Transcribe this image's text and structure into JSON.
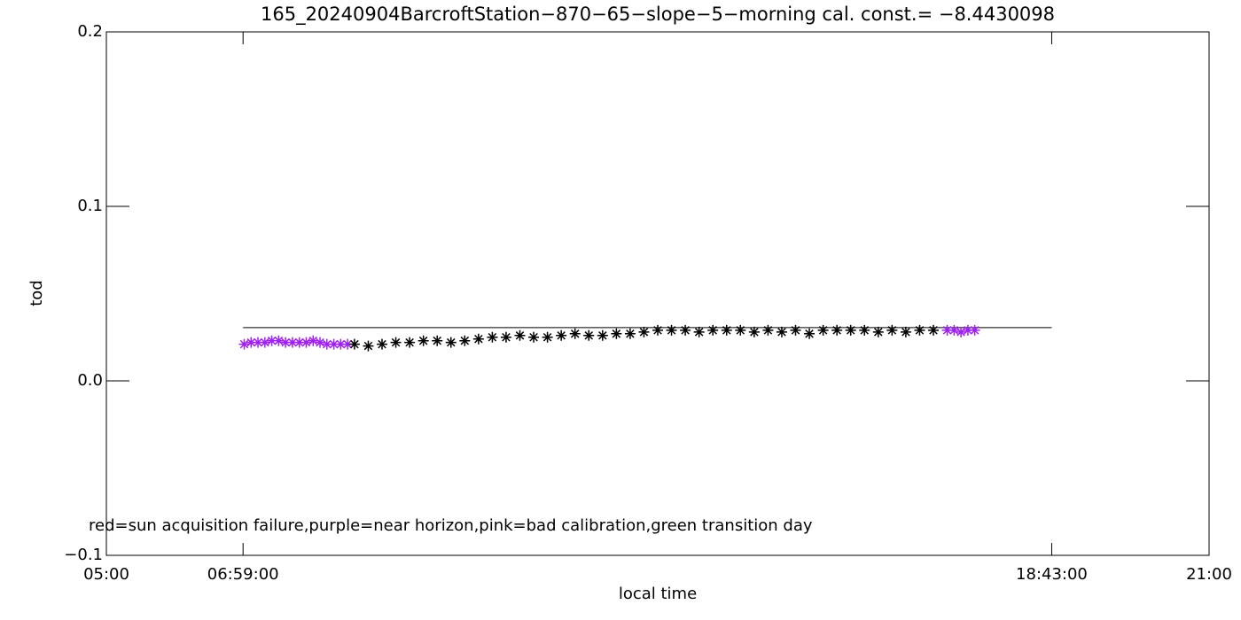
{
  "chart_data": {
    "type": "scatter",
    "title": "165_20240904BarcroftStation−870−65−slope−5−morning cal. const.= −8.4430098",
    "x_label": "local time",
    "y_label": "tod",
    "annotation": "red=sun acquisition failure,purple=near horizon,pink=bad calibration,green transition day",
    "xlim": [
      5,
      21
    ],
    "ylim": [
      -0.1,
      0.2
    ],
    "xticks": [
      {
        "value": 5,
        "label": "05:00"
      },
      {
        "value": 6.9833,
        "label": "06:59:00"
      },
      {
        "value": 18.7167,
        "label": "18:43:00"
      },
      {
        "value": 21,
        "label": "21:00"
      }
    ],
    "yticks": [
      {
        "value": -0.1,
        "label": "−0.1"
      },
      {
        "value": 0,
        "label": "0.0"
      },
      0.1,
      0.2
    ],
    "reference_line": {
      "y": 0.0305,
      "x": [
        6.9833,
        18.7167
      ],
      "color": "#000000"
    },
    "series": [
      {
        "name": "purple",
        "color": "#a020f0",
        "x": [
          7.0,
          7.1,
          7.2,
          7.3,
          7.4,
          7.5,
          7.6,
          7.7,
          7.8,
          7.9,
          8.0,
          8.1,
          8.2,
          8.3,
          8.4,
          8.5,
          17.2,
          17.3,
          17.4,
          17.5,
          17.6
        ],
        "values": [
          0.021,
          0.022,
          0.022,
          0.022,
          0.023,
          0.023,
          0.022,
          0.022,
          0.022,
          0.022,
          0.023,
          0.022,
          0.021,
          0.021,
          0.021,
          0.021,
          0.029,
          0.029,
          0.028,
          0.029,
          0.029
        ]
      },
      {
        "name": "black",
        "color": "#000000",
        "x": [
          8.6,
          8.8,
          9.0,
          9.2,
          9.4,
          9.6,
          9.8,
          10.0,
          10.2,
          10.4,
          10.6,
          10.8,
          11.0,
          11.2,
          11.4,
          11.6,
          11.8,
          12.0,
          12.2,
          12.4,
          12.6,
          12.8,
          13.0,
          13.2,
          13.4,
          13.6,
          13.8,
          14.0,
          14.2,
          14.4,
          14.6,
          14.8,
          15.0,
          15.2,
          15.4,
          15.6,
          15.8,
          16.0,
          16.2,
          16.4,
          16.6,
          16.8,
          17.0
        ],
        "values": [
          0.021,
          0.02,
          0.021,
          0.022,
          0.022,
          0.023,
          0.023,
          0.022,
          0.023,
          0.024,
          0.025,
          0.025,
          0.026,
          0.025,
          0.025,
          0.026,
          0.027,
          0.026,
          0.026,
          0.027,
          0.027,
          0.028,
          0.029,
          0.029,
          0.029,
          0.028,
          0.029,
          0.029,
          0.029,
          0.028,
          0.029,
          0.028,
          0.029,
          0.027,
          0.029,
          0.029,
          0.029,
          0.029,
          0.028,
          0.029,
          0.028,
          0.029,
          0.029
        ]
      }
    ]
  }
}
